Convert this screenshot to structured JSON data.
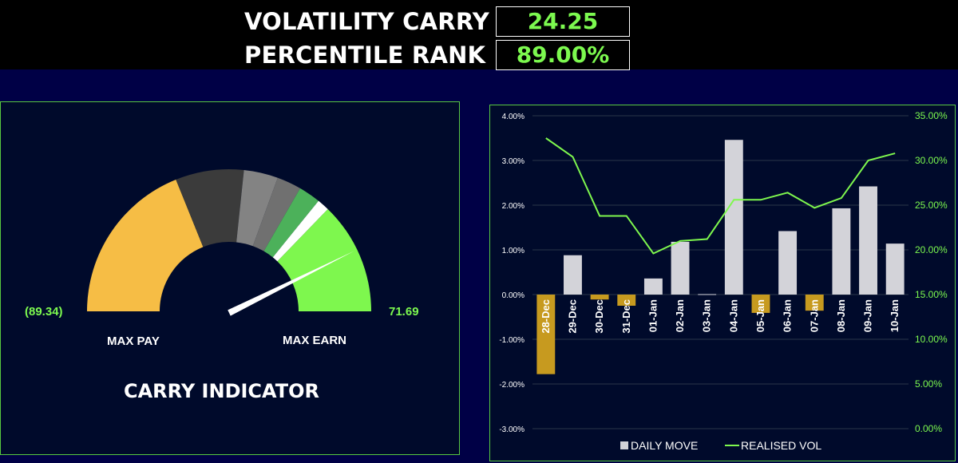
{
  "header": {
    "volatility_carry_label": "VOLATILITY CARRY",
    "volatility_carry_value": "24.25",
    "percentile_rank_label": "PERCENTILE RANK",
    "percentile_rank_value": "89.00%"
  },
  "gauge": {
    "min_label": "(89.34)",
    "max_label": "71.69",
    "left_caption": "MAX PAY",
    "right_caption": "MAX EARN",
    "title": "CARRY INDICATOR",
    "needle_position_fraction": 0.857,
    "colors": {
      "pay": "#f6bd45",
      "dark": "#3b3b3b",
      "mid": "#838383",
      "light_green": "#4cb15a",
      "white": "#ffffff",
      "earn": "#7ef74e"
    }
  },
  "chart_data": {
    "type": "bar",
    "categories": [
      "28-Dec",
      "29-Dec",
      "30-Dec",
      "31-Dec",
      "01-Jan",
      "02-Jan",
      "03-Jan",
      "04-Jan",
      "05-Jan",
      "06-Jan",
      "07-Jan",
      "08-Jan",
      "09-Jan",
      "10-Jan"
    ],
    "series": [
      {
        "name": "DAILY MOVE",
        "type": "bar",
        "axis": "left",
        "values": [
          -1.78,
          0.88,
          -0.11,
          -0.25,
          0.36,
          1.18,
          0.01,
          3.46,
          -0.41,
          1.42,
          -0.36,
          1.93,
          2.42,
          1.14
        ]
      },
      {
        "name": "REALISED VOL",
        "type": "line",
        "axis": "right",
        "values": [
          32.5,
          30.4,
          23.8,
          23.8,
          19.6,
          21.0,
          21.2,
          25.6,
          25.6,
          26.4,
          24.7,
          25.8,
          30.0,
          30.8
        ]
      }
    ],
    "y_left": {
      "min": -3,
      "max": 4,
      "ticks": [
        "4.00%",
        "3.00%",
        "2.00%",
        "1.00%",
        "0.00%",
        "-1.00%",
        "-2.00%",
        "-3.00%"
      ]
    },
    "y_right": {
      "min": 0,
      "max": 35,
      "ticks": [
        "35.00%",
        "30.00%",
        "25.00%",
        "20.00%",
        "15.00%",
        "10.00%",
        "5.00%",
        "0.00%"
      ]
    },
    "grid": true,
    "legend": "bottom",
    "colors": {
      "positive": "#d3d3d9",
      "negative": "#c79a1f",
      "line": "#7ef74e"
    }
  }
}
